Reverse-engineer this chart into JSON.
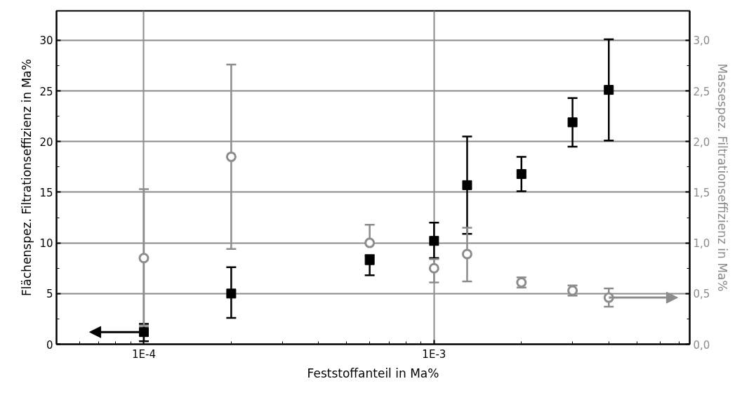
{
  "chart_data": {
    "type": "scatter",
    "xlabel": "Feststoffanteil in Ma%",
    "ylabel": "Flächenspez. Filtrationseffizienz in Ma%",
    "y2label": "Massespez. Filtrationseffizienz in Ma%",
    "log": "x",
    "grid": true,
    "xlim": [
      5e-05,
      0.0076
    ],
    "xticks": [
      {
        "value": 0.0001,
        "label": "1E-4"
      },
      {
        "value": 0.001,
        "label": "1E-3"
      }
    ],
    "ylim": [
      0,
      32.9
    ],
    "yticks": [
      0,
      5,
      10,
      15,
      20,
      25,
      30
    ],
    "y2lim": [
      0,
      3.29
    ],
    "y2ticks": [
      {
        "value": 0,
        "label": "0,0"
      },
      {
        "value": 0.5,
        "label": "0,5"
      },
      {
        "value": 1,
        "label": "1,0"
      },
      {
        "value": 1.5,
        "label": "1,5"
      },
      {
        "value": 2,
        "label": "2,0"
      },
      {
        "value": 2.5,
        "label": "2,5"
      },
      {
        "value": 3,
        "label": "3,0"
      }
    ],
    "series": [
      {
        "color": "#000000",
        "marker": "square",
        "x": [
          0.0001,
          0.0002,
          0.0006,
          0.001,
          0.0013,
          0.002,
          0.003,
          0.004
        ],
        "values": [
          1.2,
          5.0,
          8.3,
          10.2,
          15.7,
          16.8,
          21.9,
          25.1
        ],
        "errors": [
          [
            0.3,
            2.0
          ],
          [
            2.6,
            7.6
          ],
          [
            6.8,
            8.8
          ],
          [
            8.5,
            12.0
          ],
          [
            10.9,
            20.5
          ],
          [
            15.1,
            18.5
          ],
          [
            19.5,
            24.3
          ],
          [
            20.1,
            30.1
          ]
        ]
      },
      {
        "color": "#8c8c8c",
        "marker": "circle",
        "axis": "y2",
        "x": [
          0.0001,
          0.0002,
          0.0006,
          0.001,
          0.0013,
          0.002,
          0.003,
          0.004
        ],
        "values": [
          0.85,
          1.85,
          1.0,
          0.75,
          0.89,
          0.61,
          0.53,
          0.46
        ],
        "errors": [
          [
            0.18,
            1.53
          ],
          [
            0.94,
            2.76
          ],
          [
            1.0,
            1.18
          ],
          [
            0.61,
            0.84
          ],
          [
            0.62,
            1.15
          ],
          [
            0.56,
            0.66
          ],
          [
            0.48,
            0.58
          ],
          [
            0.37,
            0.55
          ]
        ]
      }
    ]
  }
}
